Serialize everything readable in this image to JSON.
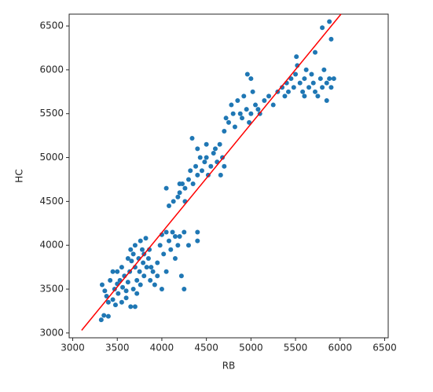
{
  "chart_data": {
    "type": "scatter",
    "x_label": "RB",
    "y_label": "HC",
    "xlim": [
      2960,
      6540
    ],
    "ylim": [
      2945,
      6635
    ],
    "xticks": [
      3000,
      3500,
      4000,
      4500,
      5000,
      5500,
      6000,
      6500
    ],
    "yticks": [
      3000,
      3500,
      4000,
      4500,
      5000,
      5500,
      6000,
      6500
    ],
    "color": "#1f77b4",
    "x": [
      3320,
      3350,
      3400,
      3330,
      3360,
      3380,
      3400,
      3420,
      3450,
      3470,
      3480,
      3500,
      3510,
      3530,
      3550,
      3560,
      3580,
      3450,
      3600,
      3620,
      3640,
      3660,
      3680,
      3700,
      3700,
      3720,
      3740,
      3750,
      3760,
      3780,
      3790,
      3800,
      3800,
      3820,
      3830,
      3850,
      3860,
      3870,
      3880,
      3900,
      3650,
      3620,
      3680,
      3720,
      3760,
      3550,
      3600,
      3650,
      3500,
      3700,
      3920,
      3950,
      3980,
      4000,
      4020,
      4050,
      4080,
      4100,
      4120,
      4150,
      4180,
      4200,
      4220,
      4250,
      4250,
      4000,
      3950,
      4300,
      4400,
      4400,
      4050,
      4150,
      4050,
      4080,
      4130,
      4180,
      4200,
      4230,
      4260,
      4300,
      4320,
      4350,
      4340,
      4380,
      4400,
      4430,
      4450,
      4480,
      4500,
      4520,
      4550,
      4580,
      4600,
      4620,
      4650,
      4660,
      4680,
      4700,
      4400,
      4500,
      4260,
      4200,
      4700,
      4720,
      4750,
      4780,
      4800,
      4820,
      4850,
      4880,
      4900,
      4920,
      4950,
      4960,
      4980,
      5000,
      5020,
      5050,
      5080,
      5000,
      5100,
      5150,
      5200,
      5250,
      5300,
      5350,
      5380,
      5400,
      5420,
      5450,
      5480,
      5500,
      5520,
      5550,
      5580,
      5600,
      5620,
      5650,
      5680,
      5700,
      5720,
      5750,
      5780,
      5800,
      5820,
      5850,
      5880,
      5900,
      5930,
      5510,
      5720,
      5800,
      5880,
      5900,
      5600,
      5850
    ],
    "y": [
      3150,
      3200,
      3190,
      3550,
      3480,
      3420,
      3350,
      3600,
      3380,
      3500,
      3320,
      3560,
      3450,
      3600,
      3350,
      3520,
      3650,
      3700,
      3480,
      3580,
      3700,
      3820,
      3900,
      3750,
      4000,
      3600,
      3850,
      3700,
      4050,
      3950,
      3800,
      3650,
      3900,
      4080,
      3750,
      3850,
      3950,
      3600,
      3750,
      3700,
      3950,
      3850,
      3500,
      3450,
      3550,
      3750,
      3400,
      3300,
      3700,
      3300,
      3550,
      3800,
      4000,
      4120,
      3900,
      3700,
      4050,
      3950,
      4150,
      3850,
      4000,
      4100,
      3650,
      4150,
      3500,
      3500,
      3650,
      4000,
      4150,
      4050,
      4150,
      4100,
      4650,
      4450,
      4500,
      4550,
      4600,
      4700,
      4650,
      4750,
      4850,
      4700,
      5220,
      4900,
      4800,
      5000,
      4850,
      4950,
      5000,
      4800,
      4900,
      5050,
      5100,
      4950,
      5150,
      4800,
      5000,
      4900,
      5100,
      5150,
      4500,
      4700,
      5300,
      5450,
      5400,
      5600,
      5500,
      5350,
      5650,
      5500,
      5450,
      5700,
      5550,
      5950,
      5400,
      5500,
      5750,
      5600,
      5550,
      5900,
      5500,
      5650,
      5700,
      5600,
      5750,
      5800,
      5700,
      5850,
      5750,
      5900,
      5800,
      5950,
      6050,
      5850,
      5750,
      5900,
      6000,
      5800,
      5950,
      5850,
      5750,
      5700,
      5900,
      5800,
      6000,
      5850,
      5900,
      5800,
      5900,
      6150,
      6200,
      6480,
      6550,
      6350,
      5700,
      5650
    ],
    "fit_line": {
      "color": "#ff0000",
      "x": [
        3100,
        6010
      ],
      "y": [
        3030,
        6635
      ]
    }
  }
}
